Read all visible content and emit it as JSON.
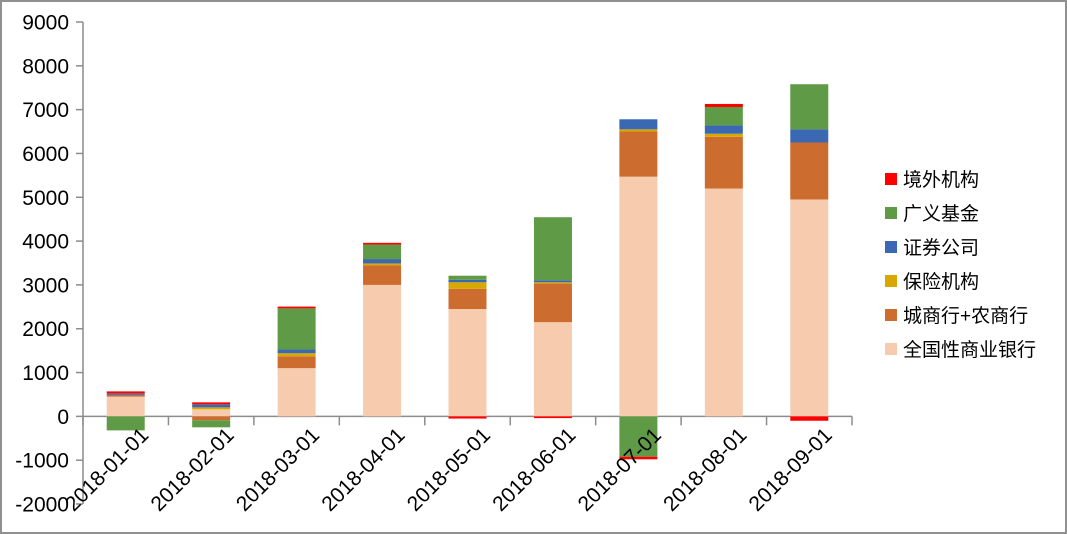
{
  "chart_data": {
    "type": "bar",
    "stacked": true,
    "title": "",
    "xlabel": "",
    "ylabel": "",
    "ylim": [
      -2000,
      9000
    ],
    "ytick_step": 1000,
    "y_ticks": [
      9000,
      8000,
      7000,
      6000,
      5000,
      4000,
      3000,
      2000,
      1000,
      0,
      -1000,
      -2000
    ],
    "grid": false,
    "legend_position": "right",
    "axis_color": "#8C8C8C",
    "frame_border_color": "#909090",
    "categories": [
      "2018-01-01",
      "2018-02-01",
      "2018-03-01",
      "2018-04-01",
      "2018-05-01",
      "2018-06-01",
      "2018-07-01",
      "2018-08-01",
      "2018-09-01"
    ],
    "series": [
      {
        "name": "全国性商业银行",
        "color": "#F7CBAD",
        "values": [
          450,
          160,
          1100,
          3000,
          2450,
          2150,
          5470,
          5200,
          4950
        ]
      },
      {
        "name": "城商行+农商行",
        "color": "#CC6C2E",
        "values": [
          40,
          -90,
          270,
          450,
          460,
          880,
          1030,
          1180,
          1300
        ]
      },
      {
        "name": "保险机构",
        "color": "#D8A800",
        "values": [
          0,
          45,
          70,
          40,
          150,
          30,
          50,
          70,
          0
        ]
      },
      {
        "name": "证券公司",
        "color": "#3A68B2",
        "values": [
          35,
          70,
          85,
          100,
          55,
          45,
          230,
          190,
          300
        ]
      },
      {
        "name": "广义基金",
        "color": "#5F9B46",
        "values": [
          -320,
          -160,
          940,
          330,
          95,
          1440,
          -920,
          420,
          1030
        ]
      },
      {
        "name": "境外机构",
        "color": "#FF0000",
        "values": [
          45,
          45,
          40,
          40,
          -50,
          -40,
          -60,
          70,
          -100
        ]
      }
    ],
    "legend_order_top_to_bottom": [
      "境外机构",
      "广义基金",
      "证券公司",
      "保险机构",
      "城商行+农商行",
      "全国性商业银行"
    ]
  }
}
